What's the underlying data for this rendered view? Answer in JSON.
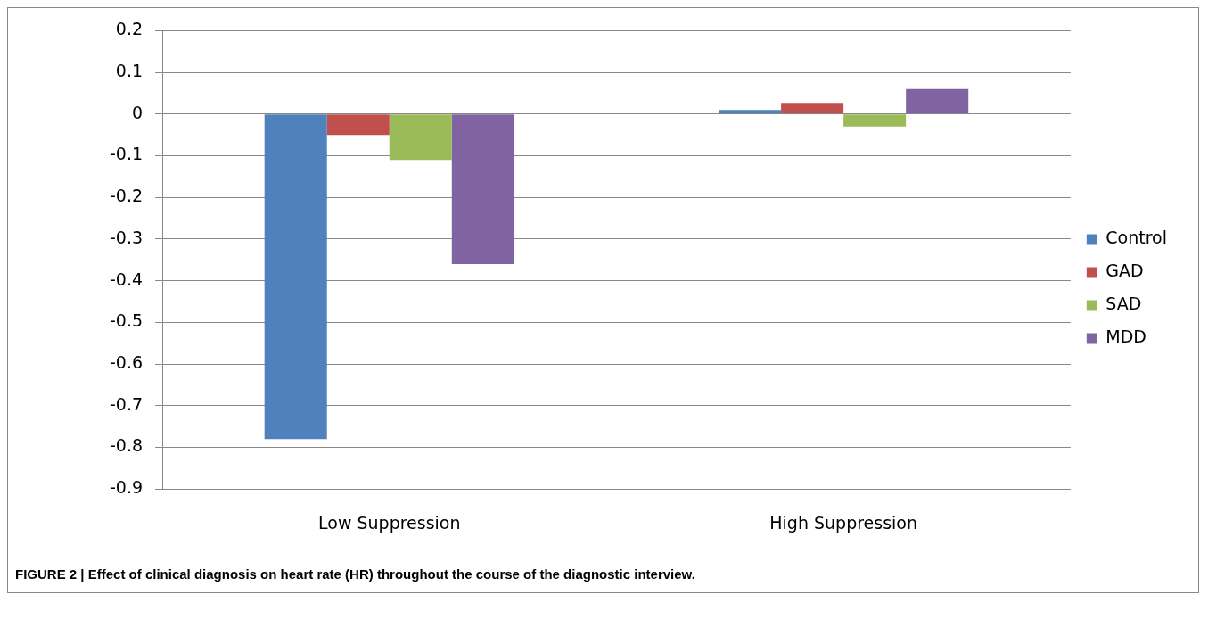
{
  "chart_data": {
    "type": "bar",
    "categories": [
      "Low Suppression",
      "High Suppression"
    ],
    "series": [
      {
        "name": "Control",
        "color": "#4f81bd",
        "values": [
          -0.78,
          0.01
        ]
      },
      {
        "name": "GAD",
        "color": "#c0504d",
        "values": [
          -0.05,
          0.025
        ]
      },
      {
        "name": "SAD",
        "color": "#9bbb59",
        "values": [
          -0.11,
          -0.03
        ]
      },
      {
        "name": "MDD",
        "color": "#8064a2",
        "values": [
          -0.36,
          0.06
        ]
      }
    ],
    "ylim": [
      -0.9,
      0.2
    ],
    "yticks": [
      -0.9,
      -0.8,
      -0.7,
      -0.6,
      -0.5,
      -0.4,
      -0.3,
      -0.2,
      -0.1,
      0,
      0.1,
      0.2
    ],
    "grid": "y",
    "legend": "right",
    "annotations": [
      "FIGURE 2 | Effect of clinical diagnosis on heart rate (HR) throughout the course of the diagnostic interview."
    ]
  }
}
